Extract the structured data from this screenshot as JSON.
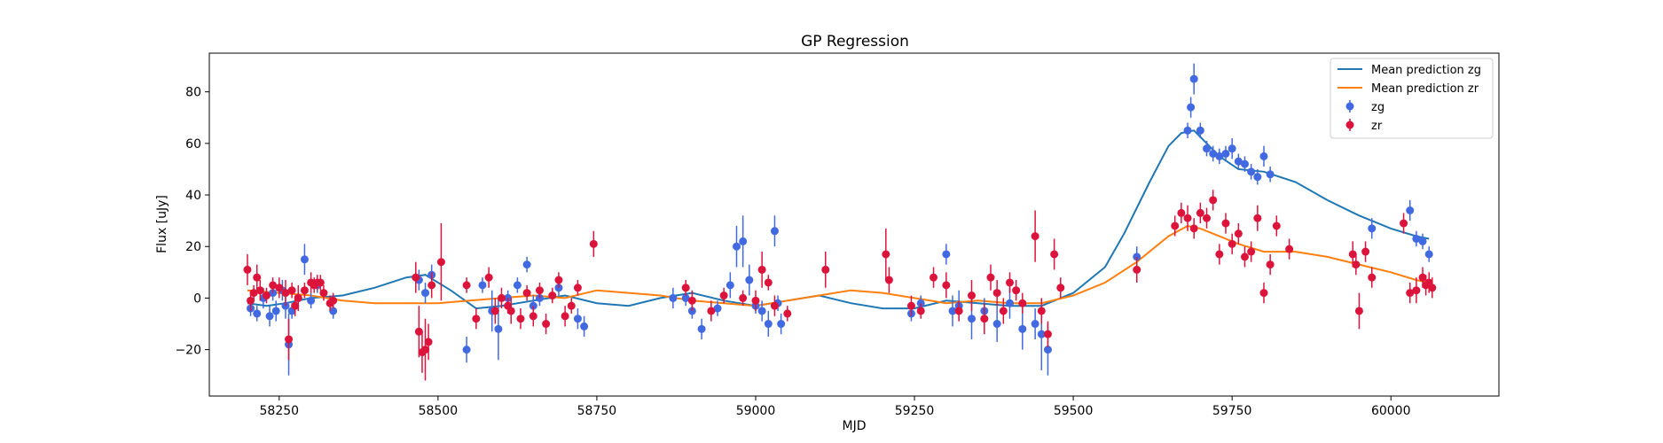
{
  "chart_data": {
    "type": "scatter",
    "title": "GP Regression",
    "xlabel": "MJD",
    "ylabel": "Flux [uJy]",
    "xlim": [
      58140,
      60170
    ],
    "ylim": [
      -38,
      95
    ],
    "xticks": [
      58250,
      58500,
      58750,
      59000,
      59250,
      59500,
      59750,
      60000
    ],
    "yticks": [
      -20,
      0,
      20,
      40,
      60,
      80
    ],
    "grid": false,
    "legend_position": "top-right",
    "legend": [
      {
        "label": "Mean prediction zg",
        "kind": "line",
        "color": "#1f77b4"
      },
      {
        "label": "Mean prediction zr",
        "kind": "line",
        "color": "#ff7f0e"
      },
      {
        "label": "zg",
        "kind": "errorbar",
        "color": "#4169e1"
      },
      {
        "label": "zr",
        "kind": "errorbar",
        "color": "#dc143c"
      }
    ],
    "series": [
      {
        "name": "Mean prediction zg",
        "kind": "line",
        "color": "#1f77b4",
        "x": [
          58200,
          58230,
          58260,
          58300,
          58350,
          58400,
          58450,
          58480,
          58520,
          58560,
          58600,
          58650,
          58700,
          58750,
          58800,
          58850,
          58900,
          58950,
          59000,
          59050,
          59100,
          59150,
          59200,
          59250,
          59300,
          59350,
          59400,
          59450,
          59500,
          59550,
          59580,
          59620,
          59650,
          59670,
          59690,
          59710,
          59730,
          59760,
          59800,
          59850,
          59900,
          59950,
          60000,
          60040,
          60060
        ],
        "y": [
          -2,
          -3,
          -2,
          0,
          1,
          4,
          8,
          9,
          3,
          -4,
          -3,
          -1,
          1,
          -2,
          -3,
          0,
          2,
          -1,
          -3,
          -1,
          1,
          -2,
          -4,
          -4,
          -1,
          -2,
          -3,
          -3,
          2,
          12,
          25,
          45,
          59,
          64,
          65,
          60,
          55,
          50,
          49,
          45,
          38,
          32,
          27,
          24,
          23
        ]
      },
      {
        "name": "Mean prediction zr",
        "kind": "line",
        "color": "#ff7f0e",
        "x": [
          58200,
          58250,
          58300,
          58350,
          58400,
          58450,
          58500,
          58550,
          58600,
          58650,
          58700,
          58750,
          58800,
          58850,
          58900,
          58950,
          59000,
          59050,
          59100,
          59150,
          59200,
          59250,
          59300,
          59350,
          59400,
          59450,
          59500,
          59550,
          59600,
          59650,
          59680,
          59700,
          59730,
          59760,
          59800,
          59850,
          59900,
          59950,
          60000,
          60040,
          60060
        ],
        "y": [
          3,
          2,
          1,
          -1,
          -2,
          -2,
          -2,
          -1,
          0,
          1,
          0,
          3,
          2,
          1,
          -1,
          -2,
          -3,
          -1,
          1,
          3,
          2,
          0,
          -2,
          -1,
          -2,
          -2,
          1,
          6,
          14,
          24,
          28,
          27,
          24,
          21,
          18,
          18,
          16,
          13,
          10,
          7,
          6
        ]
      },
      {
        "name": "zg",
        "kind": "errorbar",
        "color": "#4169e1",
        "x": [
          58205,
          58215,
          58225,
          58235,
          58240,
          58245,
          58255,
          58260,
          58265,
          58270,
          58280,
          58290,
          58300,
          58310,
          58335,
          58470,
          58480,
          58490,
          58545,
          58570,
          58585,
          58595,
          58610,
          58625,
          58640,
          58650,
          58660,
          58690,
          58720,
          58730,
          58870,
          58890,
          58900,
          58915,
          58940,
          58960,
          58970,
          58980,
          58990,
          59000,
          59010,
          59020,
          59030,
          59035,
          59040,
          59245,
          59260,
          59300,
          59310,
          59320,
          59340,
          59360,
          59380,
          59400,
          59420,
          59440,
          59450,
          59460,
          59600,
          59680,
          59685,
          59690,
          59700,
          59710,
          59720,
          59730,
          59740,
          59750,
          59760,
          59770,
          59780,
          59790,
          59800,
          59810,
          59970,
          60030,
          60040,
          60050,
          60060
        ],
        "y": [
          -4,
          -6,
          0,
          -7,
          2,
          -5,
          3,
          -3,
          -18,
          -5,
          0,
          15,
          -1,
          5,
          -5,
          7,
          2,
          9,
          -20,
          5,
          -5,
          -12,
          0,
          5,
          13,
          -3,
          0,
          4,
          -8,
          -11,
          0,
          0,
          -5,
          -12,
          -4,
          5,
          20,
          22,
          7,
          -3,
          -5,
          -10,
          26,
          -2,
          -10,
          -6,
          -2,
          17,
          -5,
          -3,
          -8,
          -5,
          -10,
          -2,
          -12,
          -10,
          -14,
          -20,
          16,
          65,
          74,
          85,
          65,
          58,
          56,
          55,
          56,
          58,
          53,
          52,
          49,
          47,
          55,
          48,
          27,
          34,
          23,
          22,
          17
        ],
        "yerr": [
          3,
          3,
          4,
          4,
          3,
          4,
          4,
          5,
          12,
          3,
          4,
          6,
          3,
          3,
          3,
          4,
          4,
          4,
          5,
          3,
          8,
          12,
          3,
          3,
          3,
          4,
          3,
          3,
          4,
          4,
          4,
          3,
          3,
          4,
          3,
          5,
          8,
          10,
          6,
          3,
          4,
          5,
          6,
          3,
          4,
          3,
          3,
          4,
          6,
          6,
          8,
          5,
          7,
          6,
          8,
          6,
          14,
          10,
          4,
          3,
          4,
          6,
          3,
          3,
          3,
          3,
          3,
          4,
          3,
          3,
          3,
          3,
          4,
          3,
          4,
          4,
          3,
          3,
          3
        ]
      },
      {
        "name": "zr",
        "kind": "errorbar",
        "color": "#dc143c",
        "x": [
          58200,
          58205,
          58210,
          58215,
          58220,
          58230,
          58240,
          58250,
          58260,
          58265,
          58270,
          58275,
          58280,
          58290,
          58300,
          58305,
          58310,
          58315,
          58320,
          58330,
          58335,
          58465,
          58470,
          58475,
          58480,
          58485,
          58490,
          58505,
          58545,
          58560,
          58580,
          58590,
          58600,
          58610,
          58615,
          58630,
          58640,
          58650,
          58660,
          58670,
          58680,
          58690,
          58700,
          58710,
          58720,
          58745,
          58890,
          58900,
          58930,
          58950,
          58980,
          59000,
          59010,
          59020,
          59030,
          59050,
          59110,
          59205,
          59210,
          59245,
          59260,
          59280,
          59300,
          59320,
          59340,
          59360,
          59370,
          59380,
          59390,
          59400,
          59410,
          59420,
          59440,
          59450,
          59460,
          59470,
          59480,
          59600,
          59660,
          59670,
          59680,
          59690,
          59700,
          59710,
          59720,
          59730,
          59740,
          59750,
          59760,
          59770,
          59780,
          59790,
          59800,
          59810,
          59820,
          59840,
          59940,
          59945,
          59950,
          59960,
          59970,
          60020,
          60030,
          60040,
          60050,
          60055,
          60060,
          60065
        ],
        "y": [
          11,
          -1,
          2,
          8,
          3,
          1,
          5,
          4,
          2,
          -16,
          3,
          -3,
          0,
          3,
          6,
          5,
          6,
          6,
          2,
          -2,
          -1,
          8,
          -13,
          -21,
          -20,
          -17,
          5,
          14,
          5,
          -8,
          8,
          -5,
          0,
          -3,
          -5,
          -8,
          2,
          -7,
          3,
          -10,
          1,
          7,
          -7,
          -3,
          4,
          21,
          4,
          -1,
          -5,
          1,
          0,
          -1,
          11,
          6,
          -3,
          -6,
          11,
          17,
          7,
          -3,
          -5,
          8,
          5,
          -5,
          1,
          -8,
          8,
          2,
          -5,
          6,
          3,
          -2,
          24,
          -5,
          -14,
          17,
          4,
          11,
          28,
          33,
          31,
          27,
          33,
          31,
          38,
          17,
          29,
          21,
          25,
          16,
          18,
          31,
          2,
          13,
          28,
          19,
          17,
          13,
          -5,
          18,
          8,
          29,
          2,
          3,
          8,
          5,
          6,
          4
        ],
        "yerr": [
          6,
          4,
          3,
          5,
          4,
          3,
          3,
          4,
          5,
          8,
          3,
          4,
          5,
          3,
          4,
          3,
          3,
          3,
          3,
          3,
          3,
          6,
          10,
          8,
          12,
          7,
          5,
          15,
          3,
          4,
          4,
          5,
          4,
          3,
          5,
          4,
          3,
          4,
          3,
          4,
          3,
          3,
          4,
          3,
          3,
          5,
          3,
          4,
          4,
          3,
          3,
          4,
          7,
          3,
          4,
          3,
          7,
          10,
          5,
          4,
          3,
          4,
          5,
          4,
          6,
          6,
          5,
          5,
          5,
          4,
          4,
          4,
          10,
          5,
          5,
          6,
          4,
          5,
          4,
          4,
          5,
          4,
          4,
          4,
          4,
          4,
          4,
          4,
          4,
          4,
          4,
          5,
          4,
          4,
          4,
          4,
          5,
          4,
          7,
          4,
          4,
          4,
          4,
          5,
          4,
          4,
          4,
          4
        ]
      }
    ]
  }
}
